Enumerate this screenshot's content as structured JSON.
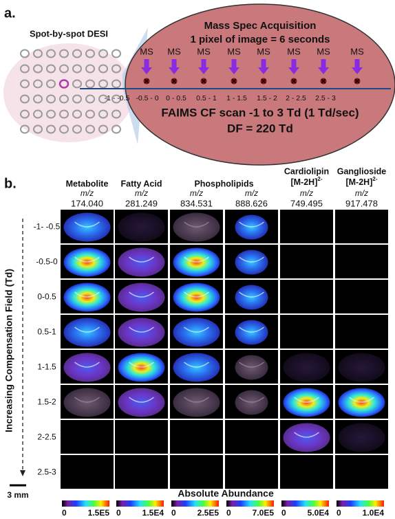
{
  "panel_a": {
    "label": "a.",
    "spot_title": "Spot-by-spot DESI",
    "acquisition_title": [
      "Mass Spec Acquisition",
      "1 pixel of image = 6 seconds"
    ],
    "ms_labels": [
      "MS",
      "MS",
      "MS",
      "MS",
      "MS",
      "MS",
      "MS",
      "MS"
    ],
    "intervals": [
      "-1 - -0.5",
      "-0.5 - 0",
      "0 - 0.5",
      "0.5 - 1",
      "1 - 1.5",
      "1.5 - 2",
      "2 - 2.5",
      "2.5 - 3"
    ],
    "scan_lines": [
      "FAIMS CF scan -1 to 3 Td (1 Td/sec)",
      "DF = 220 Td"
    ]
  },
  "panel_b": {
    "label": "b.",
    "columns": [
      {
        "class": "Metabolite",
        "mz_label": "m/z",
        "mz": "174.040"
      },
      {
        "class": "Fatty Acid",
        "mz_label": "m/z",
        "mz": "281.249"
      },
      {
        "class": "Phospholipids",
        "mz_label": "m/z",
        "mz": "834.531"
      },
      {
        "mz_label": "m/z",
        "mz": "888.626"
      },
      {
        "class": "Cardiolipin",
        "ion": "[M-2H]",
        "charge": "2-",
        "mz_label": "m/z",
        "mz": "749.495"
      },
      {
        "class": "Ganglioside",
        "ion": "[M-2H]",
        "charge": "2-",
        "mz_label": "m/z",
        "mz": "917.478"
      }
    ],
    "y_title": "Increasing Compensation Field (Td)",
    "rows": [
      "-1- -0.5",
      "-0.5-0",
      "0-0.5",
      "0.5-1",
      "1-1.5",
      "1.5-2",
      "2-2.5",
      "2.5-3"
    ],
    "scale_bar": "3 mm",
    "colorbar_title": "Absolute Abundance",
    "colorbars": [
      {
        "min": "0",
        "max": "1.5E5"
      },
      {
        "min": "0",
        "max": "1.5E4"
      },
      {
        "min": "0",
        "max": "2.5E5"
      },
      {
        "min": "0",
        "max": "7.0E5"
      },
      {
        "min": "0",
        "max": "5.0E4"
      },
      {
        "min": "0",
        "max": "1.0E4"
      }
    ]
  }
}
